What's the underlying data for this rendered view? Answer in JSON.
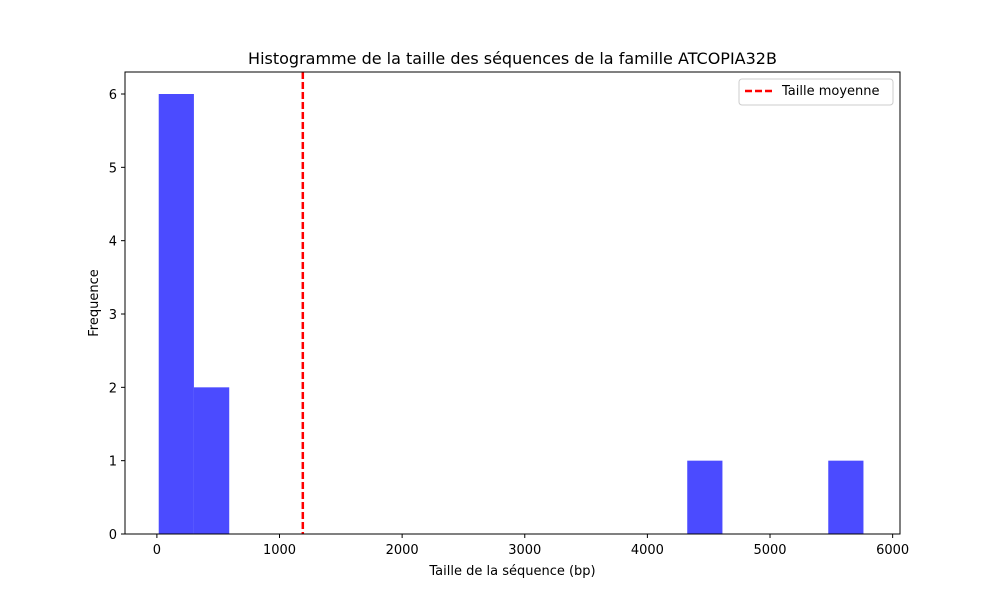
{
  "chart_data": {
    "type": "bar",
    "title": "Histogramme de la taille des séquences de la famille ATCOPIA32B",
    "xlabel": "Taille de la séquence (bp)",
    "ylabel": "Frequence",
    "xlim": [
      -260,
      6060
    ],
    "ylim": [
      0,
      6.3
    ],
    "xticks": [
      0,
      1000,
      2000,
      3000,
      4000,
      5000,
      6000
    ],
    "yticks": [
      0,
      1,
      2,
      3,
      4,
      5,
      6
    ],
    "bins": [
      {
        "start": 15,
        "end": 302,
        "count": 6
      },
      {
        "start": 302,
        "end": 590,
        "count": 2
      },
      {
        "start": 4325,
        "end": 4612,
        "count": 1
      },
      {
        "start": 5475,
        "end": 5762,
        "count": 1
      }
    ],
    "bar_color": "#4b4bff",
    "mean_line": {
      "value": 1190,
      "label": "Taille moyenne",
      "color": "#ff0000"
    },
    "legend_position": "top-right",
    "grid": false
  }
}
